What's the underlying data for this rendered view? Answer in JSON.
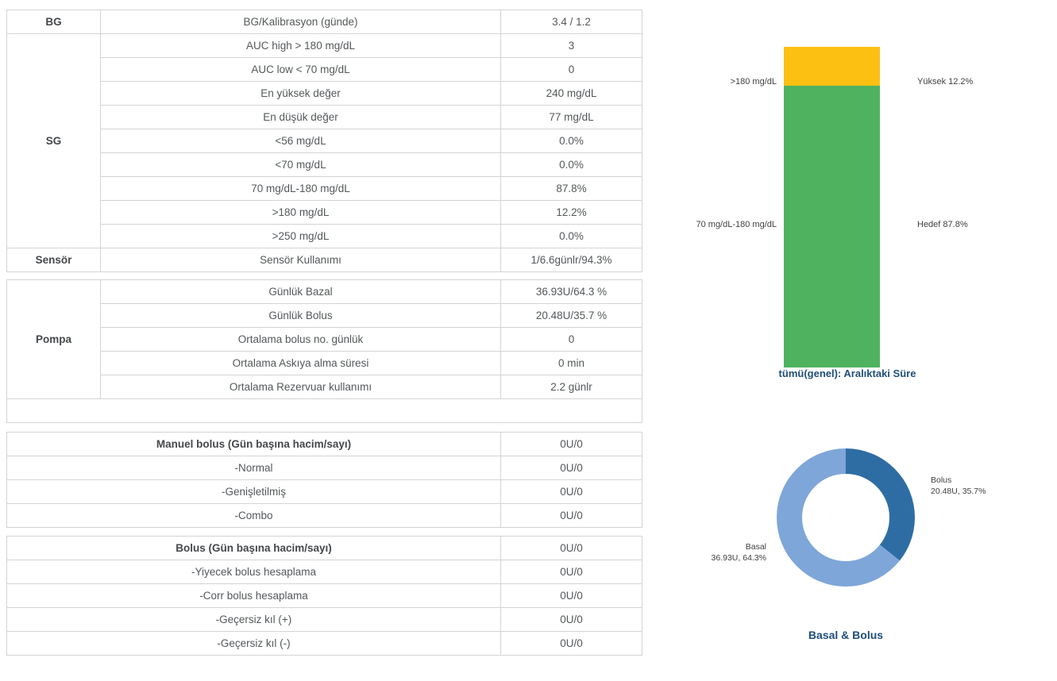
{
  "colors": {
    "high_yellow": "#FCC013",
    "target_green": "#4FB25F",
    "bolus_dark_blue": "#2E6DA4",
    "basal_light_blue": "#7EA6D9",
    "title_navy": "#1F4E79",
    "table_border": "#d4d4d4",
    "text_gray": "#54585A"
  },
  "tables": {
    "stats": {
      "groups": [
        {
          "label": "BG",
          "rows": [
            {
              "metric": "BG/Kalibrasyon (günde)",
              "value": "3.4 / 1.2"
            }
          ]
        },
        {
          "label": "SG",
          "rows": [
            {
              "metric": "AUC high > 180 mg/dL",
              "value": "3"
            },
            {
              "metric": "AUC low < 70 mg/dL",
              "value": "0"
            },
            {
              "metric": "En yüksek değer",
              "value": "240 mg/dL"
            },
            {
              "metric": "En düşük değer",
              "value": "77 mg/dL"
            },
            {
              "metric": "<56 mg/dL",
              "value": "0.0%"
            },
            {
              "metric": "<70 mg/dL",
              "value": "0.0%"
            },
            {
              "metric": "70 mg/dL-180 mg/dL",
              "value": "87.8%"
            },
            {
              "metric": ">180 mg/dL",
              "value": "12.2%"
            },
            {
              "metric": ">250 mg/dL",
              "value": "0.0%"
            }
          ]
        },
        {
          "label": "Sensör",
          "rows": [
            {
              "metric": "Sensör Kullanımı",
              "value": "1/6.6günlr/94.3%"
            }
          ]
        }
      ]
    },
    "pump": {
      "label": "Pompa",
      "rows": [
        {
          "metric": "Günlük Bazal",
          "value": "36.93U/64.3 %"
        },
        {
          "metric": "Günlük Bolus",
          "value": "20.48U/35.7 %"
        },
        {
          "metric": "Ortalama bolus no. günlük",
          "value": "0"
        },
        {
          "metric": "Ortalama Askıya alma süresi",
          "value": "0 min"
        },
        {
          "metric": "Ortalama Rezervuar kullanımı",
          "value": "2.2 günlr"
        }
      ]
    },
    "manual_bolus": {
      "header": {
        "metric": "Manuel bolus (Gün başına hacim/sayı)",
        "value": "0U/0"
      },
      "rows": [
        {
          "metric": "-Normal",
          "value": "0U/0"
        },
        {
          "metric": "-Genişletilmiş",
          "value": "0U/0"
        },
        {
          "metric": "-Combo",
          "value": "0U/0"
        }
      ]
    },
    "bolus": {
      "header": {
        "metric": "Bolus (Gün başına hacim/sayı)",
        "value": "0U/0"
      },
      "rows": [
        {
          "metric": "-Yiyecek bolus hesaplama",
          "value": "0U/0"
        },
        {
          "metric": "-Corr bolus hesaplama",
          "value": "0U/0"
        },
        {
          "metric": "-Geçersiz kıl (+)",
          "value": "0U/0"
        },
        {
          "metric": "-Geçersiz kıl (-)",
          "value": "0U/0"
        }
      ]
    }
  },
  "charts": {
    "time_in_range": {
      "title": "tümü(genel): Aralıktaki Süre",
      "segments": [
        {
          "name": "Yüksek",
          "left_label": ">180 mg/dL",
          "right_label": "Yüksek 12.2%",
          "value": 12.2,
          "color": "#FCC013"
        },
        {
          "name": "Hedef",
          "left_label": "70 mg/dL-180 mg/dL",
          "right_label": "Hedef 87.8%",
          "value": 87.8,
          "color": "#4FB25F"
        }
      ]
    },
    "basal_bolus": {
      "title": "Basal & Bolus",
      "slices": [
        {
          "name": "Bolus",
          "label_line1": "Bolus",
          "label_line2": "20.48U, 35.7%",
          "value": 35.7,
          "color": "#2E6DA4"
        },
        {
          "name": "Basal",
          "label_line1": "Basal",
          "label_line2": "36.93U, 64.3%",
          "value": 64.3,
          "color": "#7EA6D9"
        }
      ]
    }
  },
  "chart_data": [
    {
      "type": "bar",
      "title": "tümü(genel): Aralıktaki Süre",
      "categories": [
        "Yüksek (>180 mg/dL)",
        "Hedef (70 mg/dL-180 mg/dL)"
      ],
      "values": [
        12.2,
        87.8
      ],
      "unit": "%",
      "stacked": true,
      "layout": "single vertical stacked bar, yellow high segment on top of green target segment, range labels left, percentage labels right, title below",
      "colors": [
        "#FCC013",
        "#4FB25F"
      ],
      "ylim": [
        0,
        100
      ]
    },
    {
      "type": "pie",
      "title": "Basal & Bolus",
      "labels": [
        "Bolus",
        "Basal"
      ],
      "values": [
        35.7,
        64.3
      ],
      "amounts": [
        "20.48U",
        "36.93U"
      ],
      "donut": true,
      "start_angle_deg": 0,
      "direction": "clockwise",
      "colors": [
        "#2E6DA4",
        "#7EA6D9"
      ],
      "legend_position": "outside labels"
    }
  ]
}
